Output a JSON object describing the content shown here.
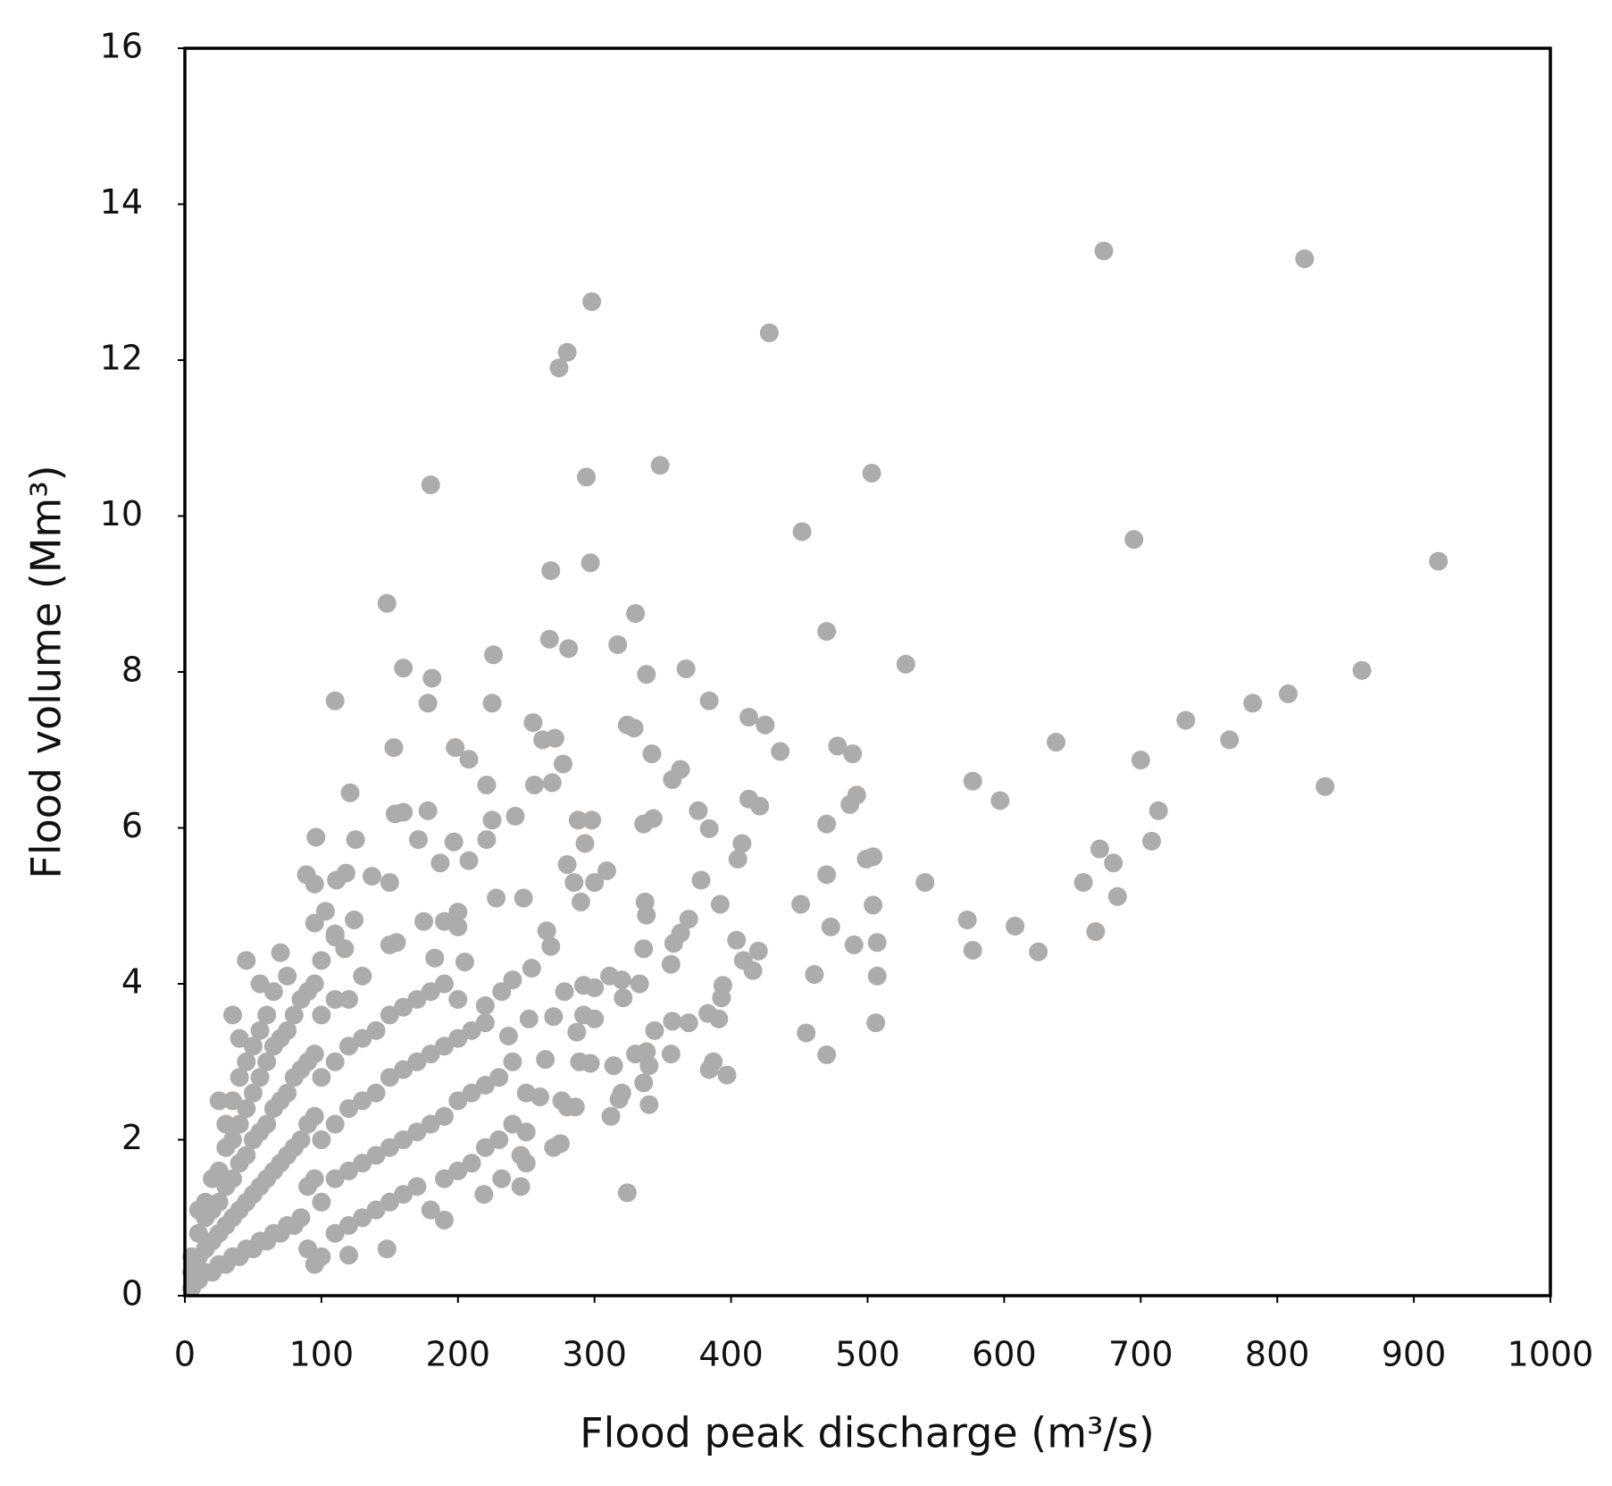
{
  "chart_data": {
    "type": "scatter",
    "x_label": "Flood peak discharge (m³/s)",
    "y_label": "Flood volume (Mm³)",
    "color": "#aeabab",
    "xlim": [
      0,
      1000
    ],
    "xticks": [
      0,
      100,
      200,
      300,
      400,
      500,
      600,
      700,
      800,
      900,
      1000
    ],
    "ylim": [
      0,
      16
    ],
    "yticks": [
      0,
      2,
      4,
      6,
      8,
      10,
      12,
      14,
      16
    ],
    "grid": false,
    "x": [
      5,
      5,
      5,
      10,
      10,
      10,
      10,
      15,
      15,
      15,
      15,
      20,
      20,
      20,
      20,
      25,
      25,
      25,
      25,
      25,
      30,
      30,
      30,
      30,
      30,
      35,
      35,
      35,
      35,
      35,
      35,
      40,
      40,
      40,
      40,
      40,
      40,
      45,
      45,
      45,
      45,
      45,
      45,
      50,
      50,
      50,
      50,
      50,
      55,
      55,
      55,
      55,
      55,
      55,
      60,
      60,
      60,
      60,
      60,
      65,
      65,
      65,
      65,
      65,
      70,
      70,
      70,
      70,
      70,
      75,
      75,
      75,
      75,
      75,
      80,
      80,
      80,
      80,
      85,
      85,
      85,
      85,
      90,
      90,
      90,
      90,
      90,
      95,
      95,
      95,
      95,
      95,
      100,
      100,
      100,
      100,
      100,
      100,
      110,
      110,
      110,
      110,
      110,
      110,
      120,
      120,
      120,
      120,
      120,
      130,
      130,
      130,
      130,
      130,
      140,
      140,
      140,
      140,
      150,
      150,
      150,
      150,
      150,
      160,
      160,
      160,
      160,
      170,
      170,
      170,
      170,
      180,
      180,
      180,
      180,
      190,
      190,
      190,
      190,
      200,
      200,
      200,
      200,
      210,
      210,
      210,
      220,
      220,
      220,
      230,
      230,
      240,
      240,
      250,
      250,
      673,
      820,
      298,
      428,
      280,
      274,
      180,
      294,
      348,
      503,
      452,
      695,
      918,
      268,
      297,
      148,
      330,
      470,
      267,
      281,
      317,
      226,
      528,
      160,
      181,
      338,
      367,
      862,
      110,
      178,
      225,
      384,
      782,
      808,
      733,
      413,
      425,
      255,
      324,
      329,
      262,
      271,
      436,
      478,
      489,
      638,
      765,
      153,
      198,
      208,
      342,
      363,
      700,
      277,
      357,
      221,
      256,
      269,
      577,
      121,
      492,
      487,
      413,
      421,
      597,
      835,
      713,
      376,
      154,
      160,
      178,
      225,
      242,
      288,
      298,
      343,
      336,
      384,
      470,
      96,
      125,
      171,
      197,
      221,
      293,
      408,
      708,
      499,
      504,
      405,
      670,
      680,
      280,
      187,
      208,
      89,
      95,
      118,
      111,
      137,
      150,
      309,
      285,
      300,
      378,
      470,
      542,
      658,
      290,
      337,
      451,
      504,
      392,
      683,
      248,
      228,
      103,
      124,
      175,
      190,
      200,
      338,
      369,
      573,
      473,
      608,
      667,
      95,
      110,
      155,
      200,
      265,
      363,
      404,
      490,
      507,
      577,
      625,
      336,
      358,
      117,
      183,
      205,
      268,
      409,
      420,
      356,
      240,
      254,
      292,
      311,
      320,
      416,
      461,
      507,
      394,
      333,
      300,
      278,
      232,
      393,
      321,
      220,
      300,
      270,
      292,
      383,
      391,
      357,
      369,
      344,
      252,
      455,
      506,
      470,
      287,
      237,
      356,
      330,
      338,
      384,
      387,
      397,
      289,
      297,
      264,
      314,
      340,
      320,
      340,
      336,
      318,
      276,
      286,
      260,
      312,
      280,
      270,
      275,
      246,
      250,
      232,
      246,
      324,
      219,
      190,
      148,
      120
    ],
    "values": [
      0.1,
      0.3,
      0.5,
      0.2,
      0.5,
      0.8,
      1.1,
      0.3,
      0.6,
      1.0,
      1.2,
      0.3,
      0.7,
      1.1,
      1.5,
      0.4,
      0.8,
      1.2,
      1.6,
      2.5,
      0.4,
      0.9,
      1.4,
      1.9,
      2.2,
      0.5,
      1.0,
      1.5,
      2.0,
      2.5,
      3.6,
      0.5,
      1.1,
      1.7,
      2.2,
      2.8,
      3.3,
      0.6,
      1.2,
      1.8,
      2.4,
      3.0,
      4.3,
      0.6,
      1.3,
      2.0,
      2.6,
      3.2,
      0.7,
      1.4,
      2.1,
      2.8,
      3.4,
      4.0,
      0.7,
      1.5,
      2.2,
      3.0,
      3.6,
      0.8,
      1.6,
      2.4,
      3.2,
      3.9,
      0.8,
      1.7,
      2.5,
      3.3,
      4.4,
      0.9,
      1.8,
      2.6,
      3.4,
      4.1,
      0.9,
      1.9,
      2.8,
      3.6,
      1.0,
      2.0,
      2.9,
      3.8,
      0.6,
      1.4,
      2.2,
      3.0,
      3.9,
      0.4,
      1.5,
      2.3,
      3.1,
      4.0,
      0.5,
      1.2,
      2.0,
      2.8,
      3.6,
      4.3,
      0.8,
      1.5,
      2.2,
      3.0,
      3.8,
      4.6,
      0.9,
      1.6,
      2.4,
      3.2,
      3.8,
      1.0,
      1.7,
      2.5,
      3.3,
      4.1,
      1.1,
      1.8,
      2.6,
      3.4,
      1.2,
      1.9,
      2.8,
      3.6,
      4.5,
      1.3,
      2.0,
      2.9,
      3.7,
      1.4,
      2.1,
      3.0,
      3.8,
      1.1,
      2.2,
      3.1,
      3.9,
      1.5,
      2.3,
      3.2,
      4.0,
      1.6,
      2.5,
      3.3,
      3.8,
      1.7,
      2.6,
      3.4,
      1.9,
      2.7,
      3.5,
      2.0,
      2.8,
      2.2,
      3.0,
      2.1,
      2.6,
      13.4,
      13.3,
      12.75,
      12.35,
      12.1,
      11.9,
      10.4,
      10.5,
      10.65,
      10.55,
      9.8,
      9.7,
      9.42,
      9.3,
      9.4,
      8.88,
      8.75,
      8.52,
      8.42,
      8.3,
      8.35,
      8.22,
      8.1,
      8.05,
      7.92,
      7.97,
      8.04,
      8.02,
      7.63,
      7.6,
      7.6,
      7.63,
      7.6,
      7.72,
      7.38,
      7.42,
      7.32,
      7.35,
      7.32,
      7.28,
      7.13,
      7.15,
      6.98,
      7.05,
      6.95,
      7.1,
      7.13,
      7.03,
      7.03,
      6.88,
      6.95,
      6.75,
      6.87,
      6.82,
      6.62,
      6.55,
      6.55,
      6.58,
      6.6,
      6.45,
      6.42,
      6.3,
      6.37,
      6.28,
      6.35,
      6.53,
      6.22,
      6.22,
      6.18,
      6.2,
      6.22,
      6.1,
      6.15,
      6.1,
      6.1,
      6.12,
      6.05,
      5.99,
      6.05,
      5.88,
      5.85,
      5.85,
      5.82,
      5.85,
      5.8,
      5.8,
      5.83,
      5.6,
      5.63,
      5.6,
      5.73,
      5.55,
      5.53,
      5.55,
      5.58,
      5.4,
      5.28,
      5.42,
      5.33,
      5.38,
      5.3,
      5.45,
      5.3,
      5.3,
      5.33,
      5.4,
      5.3,
      5.3,
      5.05,
      5.05,
      5.02,
      5.01,
      5.02,
      5.12,
      5.1,
      5.1,
      4.93,
      4.82,
      4.8,
      4.8,
      4.92,
      4.88,
      4.83,
      4.82,
      4.73,
      4.74,
      4.67,
      4.78,
      4.64,
      4.53,
      4.73,
      4.68,
      4.65,
      4.56,
      4.5,
      4.53,
      4.43,
      4.41,
      4.45,
      4.52,
      4.45,
      4.33,
      4.28,
      4.48,
      4.3,
      4.42,
      4.25,
      4.05,
      4.2,
      3.98,
      4.1,
      4.05,
      4.17,
      4.12,
      4.1,
      3.98,
      4.0,
      3.95,
      3.9,
      3.9,
      3.82,
      3.82,
      3.72,
      3.55,
      3.58,
      3.6,
      3.62,
      3.55,
      3.52,
      3.5,
      3.4,
      3.55,
      3.37,
      3.5,
      3.09,
      3.38,
      3.33,
      3.1,
      3.1,
      3.13,
      2.9,
      3.0,
      2.83,
      3.0,
      2.98,
      3.03,
      2.95,
      2.95,
      2.6,
      2.45,
      2.73,
      2.52,
      2.5,
      2.42,
      2.55,
      2.3,
      2.42,
      1.9,
      1.95,
      1.8,
      1.7,
      1.5,
      1.4,
      1.32,
      1.3,
      0.97,
      0.6,
      0.52
    ]
  }
}
